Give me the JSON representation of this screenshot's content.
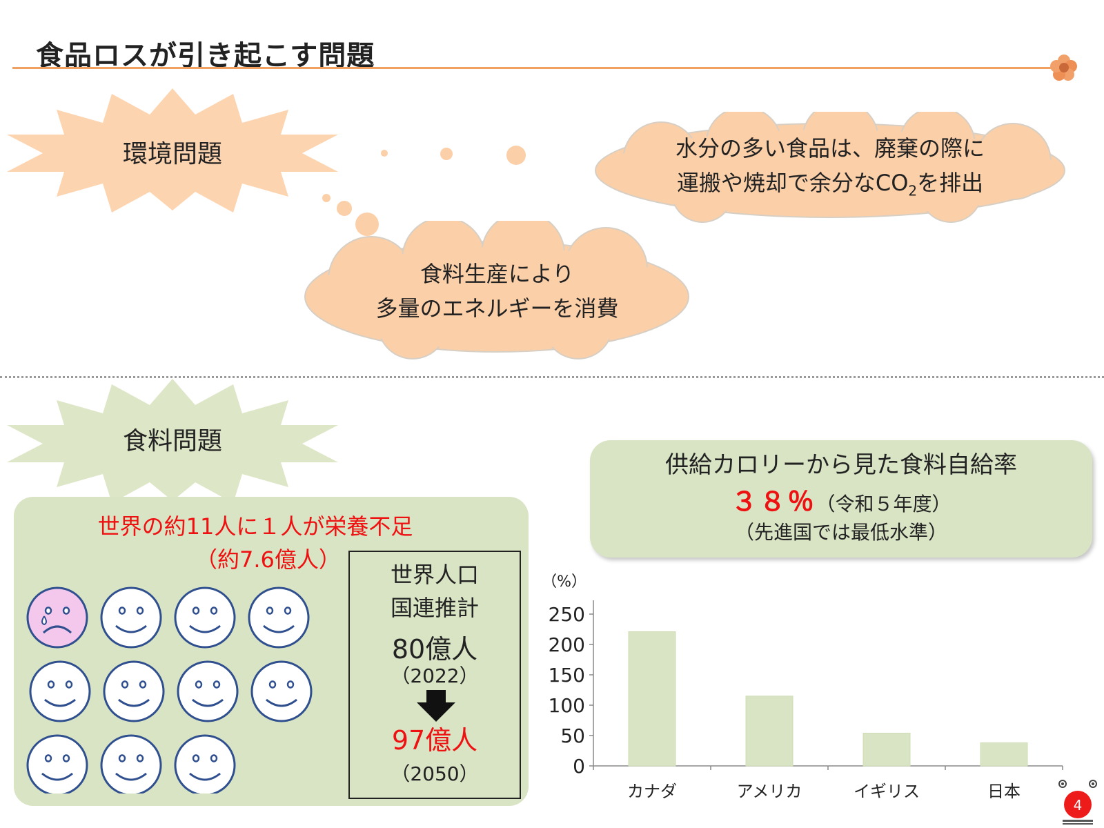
{
  "slide": {
    "title": "食品ロスが引き起こす問題"
  },
  "environment": {
    "label": "環境問題",
    "cloud_top": {
      "line1": "水分の多い食品は、廃棄の際に",
      "line2_pre": "運搬や焼却で余分なCO",
      "line2_sub": "2",
      "line2_post": "を排出"
    },
    "cloud_bottom": {
      "line1": "食料生産により",
      "line2": "多量のエネルギーを消費"
    }
  },
  "food": {
    "label": "食料問題",
    "undernourished_line1": "世界の約11人に１人が栄養不足",
    "undernourished_line2": "（約7.6億人）",
    "faces": {
      "total": 11,
      "sad": 1
    },
    "population": {
      "title_line1": "世界人口",
      "title_line2": "国連推計",
      "value_2022": "80億人",
      "year_2022": "（2022）",
      "value_2050": "97億人",
      "year_2050": "（2050）"
    }
  },
  "self_sufficiency": {
    "line1": "供給カロリーから見た食料自給率",
    "percent": "３８％",
    "fiscal_year": "（令和５年度）",
    "note": "（先進国では最低水準）"
  },
  "page": {
    "number": "4"
  },
  "colors": {
    "burst_env": "#fdd4b0",
    "cloud": "#fbcfa8",
    "burst_food": "#dde6c6",
    "panel": "#d8e4c4",
    "bar": "#d8e4c4",
    "accent_red": "#ee1111",
    "rule": "#f0a060"
  },
  "chart_data": {
    "type": "bar",
    "categories": [
      "カナダ",
      "アメリカ",
      "イギリス",
      "日本"
    ],
    "values": [
      221,
      115,
      54,
      38
    ],
    "ylabel": "（%）",
    "ylim": [
      0,
      250
    ],
    "yticks": [
      0,
      50,
      100,
      150,
      200,
      250
    ],
    "grid": false,
    "legend": "none"
  }
}
